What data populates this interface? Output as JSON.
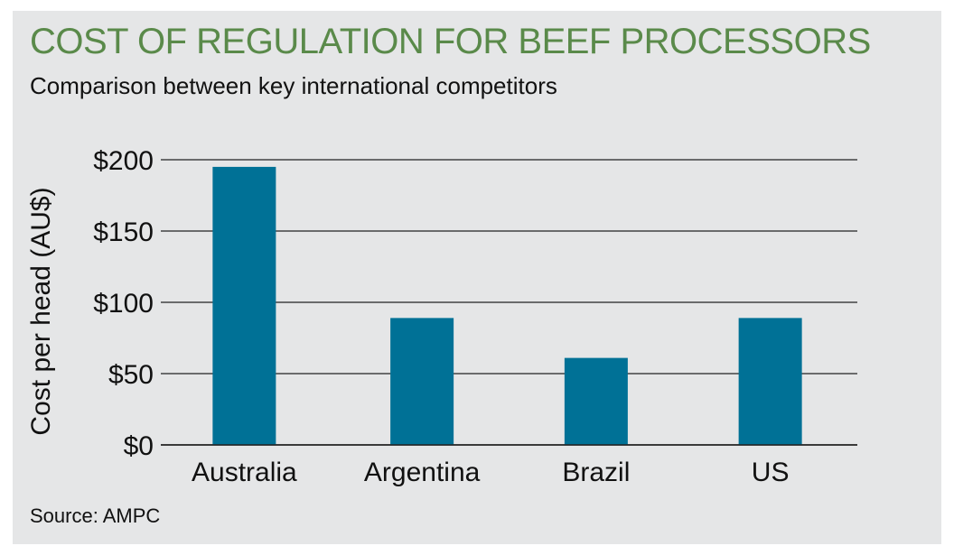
{
  "title": "COST OF REGULATION FOR BEEF PROCESSORS",
  "subtitle": "Comparison between key international competitors",
  "source": "Source: AMPC",
  "colors": {
    "background": "#e5e6e7",
    "title": "#5a8a4a",
    "bar": "#007196",
    "gridline": "#222222"
  },
  "chart_data": {
    "type": "bar",
    "title": "COST OF REGULATION FOR BEEF PROCESSORS",
    "subtitle": "Comparison between key international competitors",
    "categories": [
      "Australia",
      "Argentina",
      "Brazil",
      "US"
    ],
    "values": [
      195,
      89,
      61,
      89
    ],
    "xlabel": "",
    "ylabel": "Cost per head (AU$)",
    "ylim": [
      0,
      200
    ],
    "yticks": [
      0,
      50,
      100,
      150,
      200
    ],
    "ytick_labels": [
      "$0",
      "$50",
      "$100",
      "$150",
      "$200"
    ],
    "grid": true,
    "legend": "none"
  }
}
